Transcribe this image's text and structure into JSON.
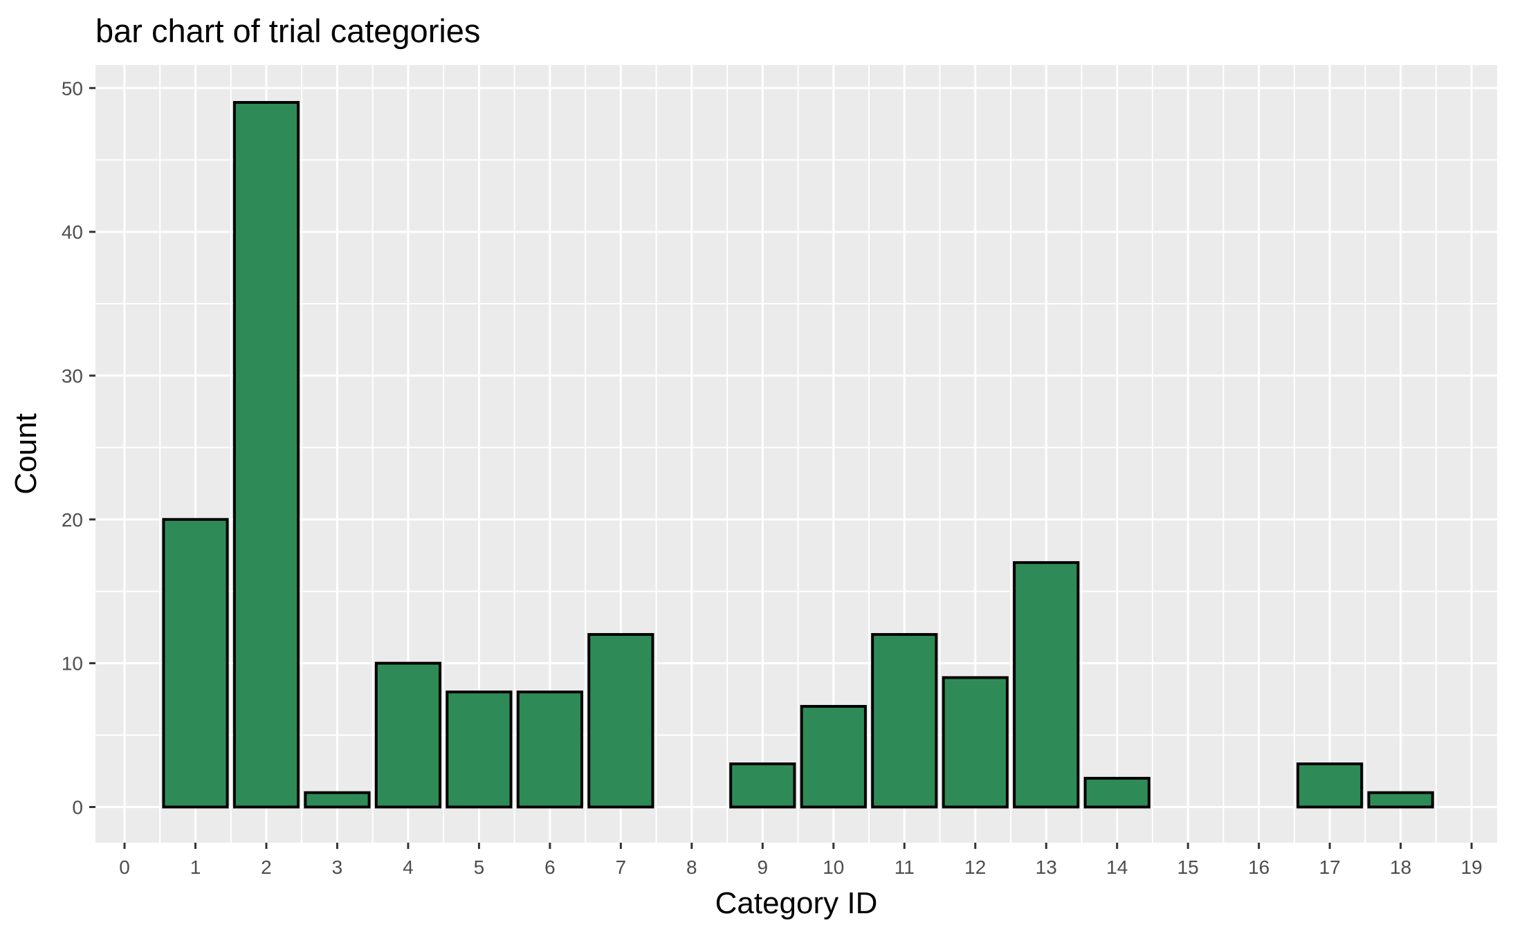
{
  "chart_data": {
    "type": "bar",
    "title": "bar chart of trial categories",
    "xlabel": "Category ID",
    "ylabel": "Count",
    "categories": [
      0,
      1,
      2,
      3,
      4,
      5,
      6,
      7,
      8,
      9,
      10,
      11,
      12,
      13,
      14,
      15,
      16,
      17,
      18,
      19
    ],
    "values": [
      0,
      20,
      49,
      1,
      10,
      8,
      8,
      12,
      0,
      3,
      7,
      12,
      9,
      17,
      2,
      0,
      0,
      3,
      1,
      0
    ],
    "x_ticks": [
      0,
      1,
      2,
      3,
      4,
      5,
      6,
      7,
      8,
      9,
      10,
      11,
      12,
      13,
      14,
      15,
      16,
      17,
      18,
      19
    ],
    "y_ticks": [
      0,
      10,
      20,
      30,
      40,
      50
    ],
    "y_minor_ticks": [
      5,
      15,
      25,
      35,
      45
    ],
    "bar_width": 0.9,
    "xlim": [
      -0.41,
      19.36
    ],
    "ylim": [
      -2.48,
      51.6
    ],
    "grid": "on",
    "legend": "none",
    "colors": {
      "bar_fill": "#2E8B57",
      "bar_stroke": "#000000",
      "panel_background": "#EBEBEB",
      "gridline": "#FFFFFF",
      "tick_label": "#4D4D4D",
      "tick_mark": "#333333",
      "title_text": "#000000",
      "axis_title_text": "#000000",
      "figure_background": "#FFFFFF"
    }
  }
}
